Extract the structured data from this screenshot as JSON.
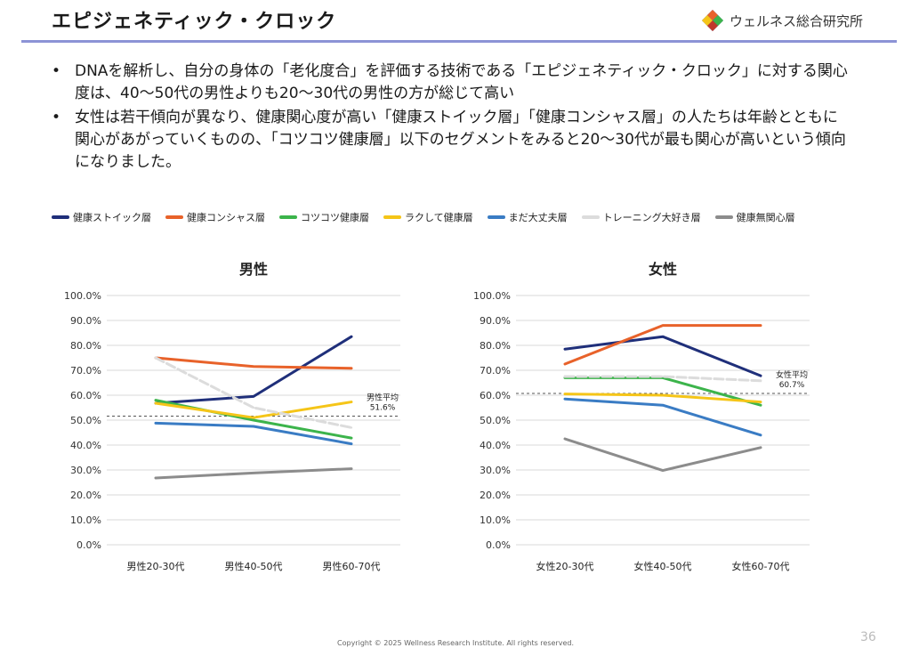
{
  "page": {
    "title": "エピジェネティック・クロック",
    "logo_text": "ウェルネス総合研究所",
    "bullets": [
      "DNAを解析し、自分の身体の「老化度合」を評価する技術である「エピジェネティック・クロック」に対する関心度は、40〜50代の男性よりも20〜30代の男性の方が総じて高い",
      "女性は若干傾向が異なり、健康関心度が高い「健康ストイック層」「健康コンシャス層」の人たちは年齢とともに関心があがっていくものの、「コツコツ健康層」以下のセグメントをみると20〜30代が最も関心が高いという傾向になりました。"
    ],
    "copyright": "Copyright © 2025 Wellness Research Institute. All rights reserved.",
    "page_number": "36"
  },
  "legend": [
    {
      "name": "健康ストイック層",
      "color": "#1f2f7a"
    },
    {
      "name": "健康コンシャス層",
      "color": "#e8622a"
    },
    {
      "name": "コツコツ健康層",
      "color": "#3cb44b"
    },
    {
      "name": "ラクして健康層",
      "color": "#f5c518"
    },
    {
      "name": "まだ大丈夫層",
      "color": "#3a7cc4"
    },
    {
      "name": "トレーニング大好き層",
      "color": "#dcdcdc"
    },
    {
      "name": "健康無関心層",
      "color": "#8c8c8c"
    }
  ],
  "chart_data": [
    {
      "type": "line",
      "title": "男性",
      "categories": [
        "男性20-30代",
        "男性40-50代",
        "男性60-70代"
      ],
      "ylim": [
        0,
        100
      ],
      "yticks": [
        "0.0%",
        "10.0%",
        "20.0%",
        "30.0%",
        "40.0%",
        "50.0%",
        "60.0%",
        "70.0%",
        "80.0%",
        "90.0%",
        "100.0%"
      ],
      "grid": true,
      "series": [
        {
          "name": "健康ストイック層",
          "values": [
            56.8,
            59.5,
            83.5
          ],
          "color": "#1f2f7a",
          "dashed": false
        },
        {
          "name": "健康コンシャス層",
          "values": [
            75.0,
            71.5,
            70.8
          ],
          "color": "#e8622a",
          "dashed": false
        },
        {
          "name": "コツコツ健康層",
          "values": [
            58.0,
            50.0,
            42.8
          ],
          "color": "#3cb44b",
          "dashed": false
        },
        {
          "name": "ラクして健康層",
          "values": [
            56.8,
            51.0,
            57.3
          ],
          "color": "#f5c518",
          "dashed": false
        },
        {
          "name": "まだ大丈夫層",
          "values": [
            48.8,
            47.5,
            40.5
          ],
          "color": "#3a7cc4",
          "dashed": false
        },
        {
          "name": "トレーニング大好き層",
          "values": [
            75.0,
            55.0,
            47.0
          ],
          "color": "#dcdcdc",
          "dashed": true
        },
        {
          "name": "健康無関心層",
          "values": [
            26.8,
            28.8,
            30.5
          ],
          "color": "#8c8c8c",
          "dashed": false
        }
      ],
      "average": {
        "label": "男性平均",
        "value_label": "51.6%",
        "value": 51.6
      }
    },
    {
      "type": "line",
      "title": "女性",
      "categories": [
        "女性20-30代",
        "女性40-50代",
        "女性60-70代"
      ],
      "ylim": [
        0,
        100
      ],
      "yticks": [
        "0.0%",
        "10.0%",
        "20.0%",
        "30.0%",
        "40.0%",
        "50.0%",
        "60.0%",
        "70.0%",
        "80.0%",
        "90.0%",
        "100.0%"
      ],
      "grid": true,
      "series": [
        {
          "name": "健康ストイック層",
          "values": [
            78.5,
            83.5,
            67.8
          ],
          "color": "#1f2f7a",
          "dashed": false
        },
        {
          "name": "健康コンシャス層",
          "values": [
            72.5,
            88.0,
            88.0
          ],
          "color": "#e8622a",
          "dashed": false
        },
        {
          "name": "コツコツ健康層",
          "values": [
            67.0,
            67.0,
            56.0
          ],
          "color": "#3cb44b",
          "dashed": false
        },
        {
          "name": "ラクして健康層",
          "values": [
            60.5,
            60.0,
            57.3
          ],
          "color": "#f5c518",
          "dashed": false
        },
        {
          "name": "まだ大丈夫層",
          "values": [
            58.5,
            56.0,
            44.0
          ],
          "color": "#3a7cc4",
          "dashed": false
        },
        {
          "name": "トレーニング大好き層",
          "values": [
            67.5,
            67.5,
            65.8
          ],
          "color": "#dcdcdc",
          "dashed": true
        },
        {
          "name": "健康無関心層",
          "values": [
            42.5,
            29.8,
            39.0
          ],
          "color": "#8c8c8c",
          "dashed": false
        }
      ],
      "average": {
        "label": "女性平均",
        "value_label": "60.7%",
        "value": 60.7
      }
    }
  ]
}
